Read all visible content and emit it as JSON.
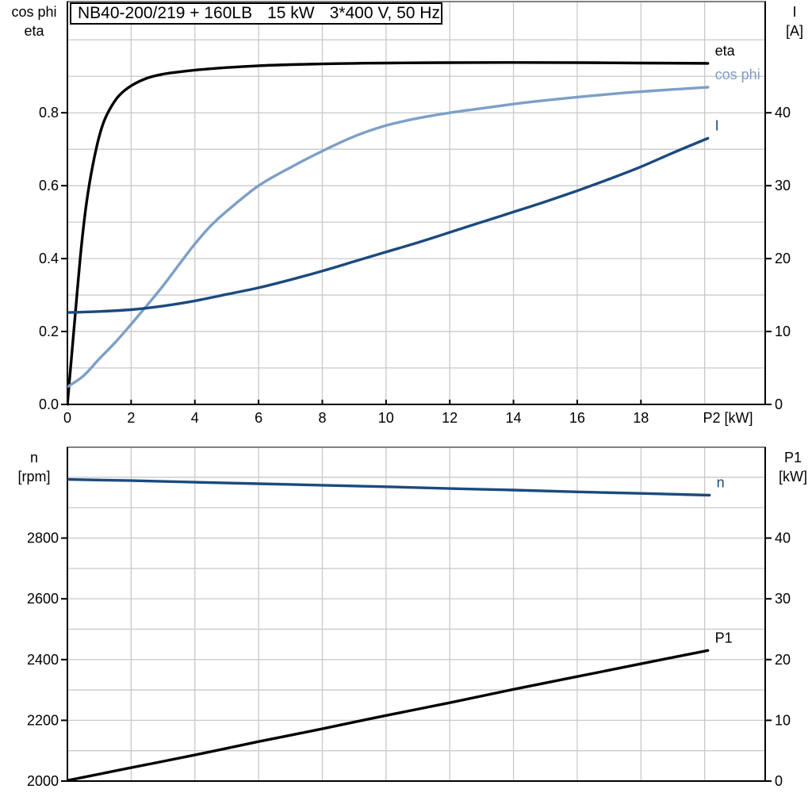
{
  "title": {
    "model": "NB40-200/219 + 160LB",
    "power": "15 kW",
    "supply": "3*400 V, 50 Hz"
  },
  "headers": {
    "top_left_line1": "cos phi",
    "top_left_line2": "eta",
    "top_right_line1": "I",
    "top_right_line2": "[A]",
    "bottom_left_line1": "n",
    "bottom_left_line2": "[rpm]",
    "bottom_right_line1": "P1",
    "bottom_right_line2": "[kW]"
  },
  "colors": {
    "black": "#000000",
    "light_blue": "#7d9fc7",
    "dark_blue": "#1b4a7e",
    "grid": "#c9c9c9",
    "top_border": "#808080",
    "axis": "#000000",
    "background": "#ffffff"
  },
  "chart_data": [
    {
      "id": "electrical",
      "type": "line",
      "title": "NB40-200/219 + 160LB   15 kW   3*400 V, 50 Hz",
      "x_axis": {
        "label": "P2 [kW]",
        "range": [
          0,
          21.9
        ],
        "tick_values": [
          0,
          2,
          4,
          6,
          8,
          10,
          12,
          14,
          16,
          18
        ],
        "tick_labels": [
          "0",
          "2",
          "4",
          "6",
          "8",
          "10",
          "12",
          "14",
          "16",
          "18"
        ],
        "grid": [
          2,
          4,
          6,
          8,
          10,
          12,
          14,
          16,
          18,
          20
        ],
        "show_tick_labels": true
      },
      "y_left": {
        "label": "cos phi / eta",
        "range": [
          0,
          1.105
        ],
        "tick_values": [
          0,
          0.2,
          0.4,
          0.6,
          0.8
        ],
        "tick_labels": [
          "0.0",
          "0.2",
          "0.4",
          "0.6",
          "0.8"
        ],
        "grid": [
          0.1,
          0.2,
          0.3,
          0.4,
          0.5,
          0.6,
          0.7,
          0.8,
          0.9,
          1.0
        ]
      },
      "y_right": {
        "label": "I [A]",
        "range": [
          0,
          55.25
        ],
        "tick_values": [
          0,
          10,
          20,
          30,
          40
        ],
        "tick_labels": [
          "0",
          "10",
          "20",
          "30",
          "40"
        ]
      },
      "series": [
        {
          "name": "eta",
          "label": "eta",
          "axis": "left",
          "color": "#000000",
          "points": [
            [
              0,
              0
            ],
            [
              0.12,
              0.12
            ],
            [
              0.25,
              0.25
            ],
            [
              0.4,
              0.4
            ],
            [
              0.55,
              0.52
            ],
            [
              0.7,
              0.61
            ],
            [
              0.9,
              0.7
            ],
            [
              1.1,
              0.765
            ],
            [
              1.3,
              0.805
            ],
            [
              1.6,
              0.845
            ],
            [
              2,
              0.874
            ],
            [
              2.5,
              0.895
            ],
            [
              3,
              0.906
            ],
            [
              3.5,
              0.912
            ],
            [
              4,
              0.917
            ],
            [
              5,
              0.924
            ],
            [
              6,
              0.929
            ],
            [
              7,
              0.932
            ],
            [
              8,
              0.934
            ],
            [
              9,
              0.9355
            ],
            [
              10,
              0.9365
            ],
            [
              12,
              0.9375
            ],
            [
              14,
              0.938
            ],
            [
              16,
              0.9375
            ],
            [
              18,
              0.9365
            ],
            [
              20.1,
              0.9355
            ]
          ]
        },
        {
          "name": "cos-phi",
          "label": "cos phi",
          "axis": "left",
          "color": "#7d9fc7",
          "points": [
            [
              0,
              0.048
            ],
            [
              0.5,
              0.078
            ],
            [
              1,
              0.125
            ],
            [
              1.5,
              0.17
            ],
            [
              2,
              0.22
            ],
            [
              2.5,
              0.272
            ],
            [
              3,
              0.325
            ],
            [
              3.5,
              0.383
            ],
            [
              4,
              0.44
            ],
            [
              4.5,
              0.49
            ],
            [
              5,
              0.53
            ],
            [
              6,
              0.6
            ],
            [
              7,
              0.65
            ],
            [
              8,
              0.695
            ],
            [
              9,
              0.735
            ],
            [
              10,
              0.765
            ],
            [
              11,
              0.785
            ],
            [
              12,
              0.8
            ],
            [
              13,
              0.812
            ],
            [
              14,
              0.824
            ],
            [
              15,
              0.834
            ],
            [
              16,
              0.843
            ],
            [
              17,
              0.851
            ],
            [
              18,
              0.858
            ],
            [
              19,
              0.864
            ],
            [
              20.1,
              0.87
            ]
          ]
        },
        {
          "name": "I",
          "label": "I",
          "axis": "right",
          "color": "#1b4a7e",
          "points": [
            [
              0,
              12.6
            ],
            [
              1,
              12.75
            ],
            [
              2,
              13.0
            ],
            [
              3,
              13.5
            ],
            [
              4,
              14.2
            ],
            [
              5,
              15.1
            ],
            [
              6,
              16.0
            ],
            [
              7,
              17.1
            ],
            [
              8,
              18.3
            ],
            [
              9,
              19.6
            ],
            [
              10,
              20.9
            ],
            [
              11,
              22.2
            ],
            [
              12,
              23.6
            ],
            [
              13,
              25.0
            ],
            [
              14,
              26.4
            ],
            [
              15,
              27.8
            ],
            [
              16,
              29.3
            ],
            [
              17,
              30.9
            ],
            [
              18,
              32.6
            ],
            [
              19,
              34.5
            ],
            [
              20.1,
              36.5
            ]
          ]
        }
      ]
    },
    {
      "id": "mechanical",
      "type": "line",
      "x_axis": {
        "label": "",
        "range": [
          0,
          21.9
        ],
        "tick_values": [],
        "tick_labels": [],
        "grid": [
          2,
          4,
          6,
          8,
          10,
          12,
          14,
          16,
          18,
          20
        ],
        "show_tick_labels": false
      },
      "y_left": {
        "label": "n [rpm]",
        "range": [
          2000,
          3099
        ],
        "tick_values": [
          2000,
          2200,
          2400,
          2600,
          2800
        ],
        "tick_labels": [
          "2000",
          "2200",
          "2400",
          "2600",
          "2800"
        ],
        "grid": [
          2100,
          2200,
          2300,
          2400,
          2500,
          2600,
          2700,
          2800,
          2900,
          3000
        ]
      },
      "y_right": {
        "label": "P1 [kW]",
        "range": [
          0,
          54.95
        ],
        "tick_values": [
          0,
          10,
          20,
          30,
          40
        ],
        "tick_labels": [
          "0",
          "10",
          "20",
          "30",
          "40"
        ]
      },
      "series": [
        {
          "name": "n",
          "label": "n",
          "axis": "left",
          "color": "#1b4a7e",
          "points": [
            [
              0,
              2993
            ],
            [
              2,
              2989
            ],
            [
              4,
              2984
            ],
            [
              6,
              2979
            ],
            [
              8,
              2974
            ],
            [
              10,
              2969
            ],
            [
              12,
              2963
            ],
            [
              14,
              2958
            ],
            [
              16,
              2952
            ],
            [
              18,
              2947
            ],
            [
              20.15,
              2941
            ]
          ]
        },
        {
          "name": "P1",
          "label": "P1",
          "axis": "right",
          "color": "#000000",
          "points": [
            [
              0,
              0.1
            ],
            [
              2,
              2.2
            ],
            [
              4,
              4.3
            ],
            [
              6,
              6.5
            ],
            [
              8,
              8.6
            ],
            [
              10,
              10.8
            ],
            [
              12,
              12.9
            ],
            [
              14,
              15.1
            ],
            [
              16,
              17.2
            ],
            [
              18,
              19.3
            ],
            [
              20.1,
              21.5
            ]
          ]
        }
      ]
    }
  ]
}
